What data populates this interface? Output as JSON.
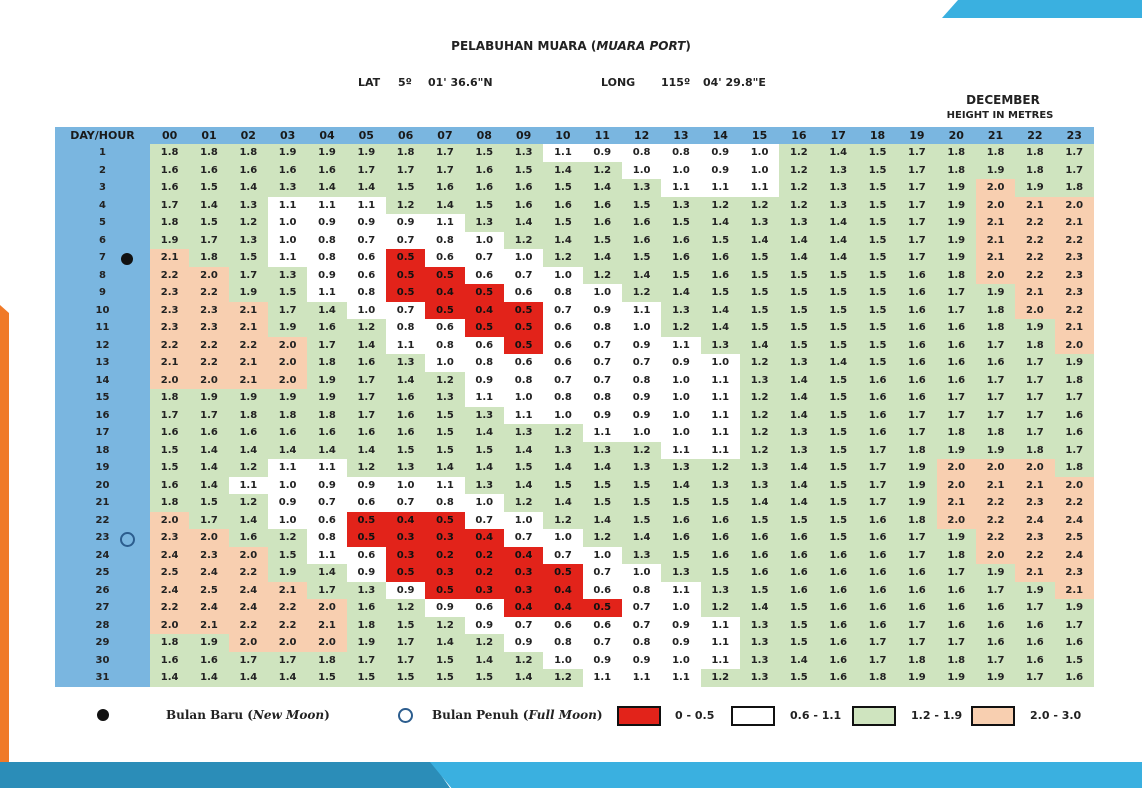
{
  "header": {
    "title_main": "PELABUHAN MUARA (",
    "title_italic": "MUARA PORT",
    "title_end": ")",
    "lat_label": "LAT",
    "lat_deg": "5º",
    "lat_min": "01' 36.6\"N",
    "long_label": "LONG",
    "long_deg": "115º",
    "long_min": "04' 29.8\"E",
    "month": "DECEMBER",
    "units": "HEIGHT IN METRES"
  },
  "table": {
    "corner_label": "DAY/HOUR",
    "hours": [
      "00",
      "01",
      "02",
      "03",
      "04",
      "05",
      "06",
      "07",
      "08",
      "09",
      "10",
      "11",
      "12",
      "13",
      "14",
      "15",
      "16",
      "17",
      "18",
      "19",
      "20",
      "21",
      "22",
      "23"
    ],
    "rows": [
      [
        "1.8",
        "1.8",
        "1.8",
        "1.9",
        "1.9",
        "1.9",
        "1.8",
        "1.7",
        "1.5",
        "1.3",
        "1.1",
        "0.9",
        "0.8",
        "0.8",
        "0.9",
        "1.0",
        "1.2",
        "1.4",
        "1.5",
        "1.7",
        "1.8",
        "1.8",
        "1.8",
        "1.7"
      ],
      [
        "1.6",
        "1.6",
        "1.6",
        "1.6",
        "1.6",
        "1.7",
        "1.7",
        "1.7",
        "1.6",
        "1.5",
        "1.4",
        "1.2",
        "1.0",
        "1.0",
        "0.9",
        "1.0",
        "1.2",
        "1.3",
        "1.5",
        "1.7",
        "1.8",
        "1.9",
        "1.8",
        "1.7"
      ],
      [
        "1.6",
        "1.5",
        "1.4",
        "1.3",
        "1.4",
        "1.4",
        "1.5",
        "1.6",
        "1.6",
        "1.6",
        "1.5",
        "1.4",
        "1.3",
        "1.1",
        "1.1",
        "1.1",
        "1.2",
        "1.3",
        "1.5",
        "1.7",
        "1.9",
        "2.0",
        "1.9",
        "1.8"
      ],
      [
        "1.7",
        "1.4",
        "1.3",
        "1.1",
        "1.1",
        "1.1",
        "1.2",
        "1.4",
        "1.5",
        "1.6",
        "1.6",
        "1.6",
        "1.5",
        "1.3",
        "1.2",
        "1.2",
        "1.2",
        "1.3",
        "1.5",
        "1.7",
        "1.9",
        "2.0",
        "2.1",
        "2.0"
      ],
      [
        "1.8",
        "1.5",
        "1.2",
        "1.0",
        "0.9",
        "0.9",
        "0.9",
        "1.1",
        "1.3",
        "1.4",
        "1.5",
        "1.6",
        "1.6",
        "1.5",
        "1.4",
        "1.3",
        "1.3",
        "1.4",
        "1.5",
        "1.7",
        "1.9",
        "2.1",
        "2.2",
        "2.1"
      ],
      [
        "1.9",
        "1.7",
        "1.3",
        "1.0",
        "0.8",
        "0.7",
        "0.7",
        "0.8",
        "1.0",
        "1.2",
        "1.4",
        "1.5",
        "1.6",
        "1.6",
        "1.5",
        "1.4",
        "1.4",
        "1.4",
        "1.5",
        "1.7",
        "1.9",
        "2.1",
        "2.2",
        "2.2"
      ],
      [
        "2.1",
        "1.8",
        "1.5",
        "1.1",
        "0.8",
        "0.6",
        "0.5",
        "0.6",
        "0.7",
        "1.0",
        "1.2",
        "1.4",
        "1.5",
        "1.6",
        "1.6",
        "1.5",
        "1.4",
        "1.4",
        "1.5",
        "1.7",
        "1.9",
        "2.1",
        "2.2",
        "2.3"
      ],
      [
        "2.2",
        "2.0",
        "1.7",
        "1.3",
        "0.9",
        "0.6",
        "0.5",
        "0.5",
        "0.6",
        "0.7",
        "1.0",
        "1.2",
        "1.4",
        "1.5",
        "1.6",
        "1.5",
        "1.5",
        "1.5",
        "1.5",
        "1.6",
        "1.8",
        "2.0",
        "2.2",
        "2.3"
      ],
      [
        "2.3",
        "2.2",
        "1.9",
        "1.5",
        "1.1",
        "0.8",
        "0.5",
        "0.4",
        "0.5",
        "0.6",
        "0.8",
        "1.0",
        "1.2",
        "1.4",
        "1.5",
        "1.5",
        "1.5",
        "1.5",
        "1.5",
        "1.6",
        "1.7",
        "1.9",
        "2.1",
        "2.3"
      ],
      [
        "2.3",
        "2.3",
        "2.1",
        "1.7",
        "1.4",
        "1.0",
        "0.7",
        "0.5",
        "0.4",
        "0.5",
        "0.7",
        "0.9",
        "1.1",
        "1.3",
        "1.4",
        "1.5",
        "1.5",
        "1.5",
        "1.5",
        "1.6",
        "1.7",
        "1.8",
        "2.0",
        "2.2"
      ],
      [
        "2.3",
        "2.3",
        "2.1",
        "1.9",
        "1.6",
        "1.2",
        "0.8",
        "0.6",
        "0.5",
        "0.5",
        "0.6",
        "0.8",
        "1.0",
        "1.2",
        "1.4",
        "1.5",
        "1.5",
        "1.5",
        "1.5",
        "1.6",
        "1.6",
        "1.8",
        "1.9",
        "2.1"
      ],
      [
        "2.2",
        "2.2",
        "2.2",
        "2.0",
        "1.7",
        "1.4",
        "1.1",
        "0.8",
        "0.6",
        "0.5",
        "0.6",
        "0.7",
        "0.9",
        "1.1",
        "1.3",
        "1.4",
        "1.5",
        "1.5",
        "1.5",
        "1.6",
        "1.6",
        "1.7",
        "1.8",
        "2.0"
      ],
      [
        "2.1",
        "2.2",
        "2.1",
        "2.0",
        "1.8",
        "1.6",
        "1.3",
        "1.0",
        "0.8",
        "0.6",
        "0.6",
        "0.7",
        "0.7",
        "0.9",
        "1.0",
        "1.2",
        "1.3",
        "1.4",
        "1.5",
        "1.6",
        "1.6",
        "1.6",
        "1.7",
        "1.9"
      ],
      [
        "2.0",
        "2.0",
        "2.1",
        "2.0",
        "1.9",
        "1.7",
        "1.4",
        "1.2",
        "0.9",
        "0.8",
        "0.7",
        "0.7",
        "0.8",
        "1.0",
        "1.1",
        "1.3",
        "1.4",
        "1.5",
        "1.6",
        "1.6",
        "1.6",
        "1.7",
        "1.7",
        "1.8"
      ],
      [
        "1.8",
        "1.9",
        "1.9",
        "1.9",
        "1.9",
        "1.7",
        "1.6",
        "1.3",
        "1.1",
        "1.0",
        "0.8",
        "0.8",
        "0.9",
        "1.0",
        "1.1",
        "1.2",
        "1.4",
        "1.5",
        "1.6",
        "1.6",
        "1.7",
        "1.7",
        "1.7",
        "1.7"
      ],
      [
        "1.7",
        "1.7",
        "1.8",
        "1.8",
        "1.8",
        "1.7",
        "1.6",
        "1.5",
        "1.3",
        "1.1",
        "1.0",
        "0.9",
        "0.9",
        "1.0",
        "1.1",
        "1.2",
        "1.4",
        "1.5",
        "1.6",
        "1.7",
        "1.7",
        "1.7",
        "1.7",
        "1.6"
      ],
      [
        "1.6",
        "1.6",
        "1.6",
        "1.6",
        "1.6",
        "1.6",
        "1.6",
        "1.5",
        "1.4",
        "1.3",
        "1.2",
        "1.1",
        "1.0",
        "1.0",
        "1.1",
        "1.2",
        "1.3",
        "1.5",
        "1.6",
        "1.7",
        "1.8",
        "1.8",
        "1.7",
        "1.6"
      ],
      [
        "1.5",
        "1.4",
        "1.4",
        "1.4",
        "1.4",
        "1.4",
        "1.5",
        "1.5",
        "1.5",
        "1.4",
        "1.3",
        "1.3",
        "1.2",
        "1.1",
        "1.1",
        "1.2",
        "1.3",
        "1.5",
        "1.7",
        "1.8",
        "1.9",
        "1.9",
        "1.8",
        "1.7"
      ],
      [
        "1.5",
        "1.4",
        "1.2",
        "1.1",
        "1.1",
        "1.2",
        "1.3",
        "1.4",
        "1.4",
        "1.5",
        "1.4",
        "1.4",
        "1.3",
        "1.3",
        "1.2",
        "1.3",
        "1.4",
        "1.5",
        "1.7",
        "1.9",
        "2.0",
        "2.0",
        "2.0",
        "1.8"
      ],
      [
        "1.6",
        "1.4",
        "1.1",
        "1.0",
        "0.9",
        "0.9",
        "1.0",
        "1.1",
        "1.3",
        "1.4",
        "1.5",
        "1.5",
        "1.5",
        "1.4",
        "1.3",
        "1.3",
        "1.4",
        "1.5",
        "1.7",
        "1.9",
        "2.0",
        "2.1",
        "2.1",
        "2.0"
      ],
      [
        "1.8",
        "1.5",
        "1.2",
        "0.9",
        "0.7",
        "0.6",
        "0.7",
        "0.8",
        "1.0",
        "1.2",
        "1.4",
        "1.5",
        "1.5",
        "1.5",
        "1.5",
        "1.4",
        "1.4",
        "1.5",
        "1.7",
        "1.9",
        "2.1",
        "2.2",
        "2.3",
        "2.2"
      ],
      [
        "2.0",
        "1.7",
        "1.4",
        "1.0",
        "0.6",
        "0.5",
        "0.4",
        "0.5",
        "0.7",
        "1.0",
        "1.2",
        "1.4",
        "1.5",
        "1.6",
        "1.6",
        "1.5",
        "1.5",
        "1.5",
        "1.6",
        "1.8",
        "2.0",
        "2.2",
        "2.4",
        "2.4"
      ],
      [
        "2.3",
        "2.0",
        "1.6",
        "1.2",
        "0.8",
        "0.5",
        "0.3",
        "0.3",
        "0.4",
        "0.7",
        "1.0",
        "1.2",
        "1.4",
        "1.6",
        "1.6",
        "1.6",
        "1.6",
        "1.5",
        "1.6",
        "1.7",
        "1.9",
        "2.2",
        "2.3",
        "2.5"
      ],
      [
        "2.4",
        "2.3",
        "2.0",
        "1.5",
        "1.1",
        "0.6",
        "0.3",
        "0.2",
        "0.2",
        "0.4",
        "0.7",
        "1.0",
        "1.3",
        "1.5",
        "1.6",
        "1.6",
        "1.6",
        "1.6",
        "1.6",
        "1.7",
        "1.8",
        "2.0",
        "2.2",
        "2.4"
      ],
      [
        "2.5",
        "2.4",
        "2.2",
        "1.9",
        "1.4",
        "0.9",
        "0.5",
        "0.3",
        "0.2",
        "0.3",
        "0.5",
        "0.7",
        "1.0",
        "1.3",
        "1.5",
        "1.6",
        "1.6",
        "1.6",
        "1.6",
        "1.6",
        "1.7",
        "1.9",
        "2.1",
        "2.3"
      ],
      [
        "2.4",
        "2.5",
        "2.4",
        "2.1",
        "1.7",
        "1.3",
        "0.9",
        "0.5",
        "0.3",
        "0.3",
        "0.4",
        "0.6",
        "0.8",
        "1.1",
        "1.3",
        "1.5",
        "1.6",
        "1.6",
        "1.6",
        "1.6",
        "1.6",
        "1.7",
        "1.9",
        "2.1"
      ],
      [
        "2.2",
        "2.4",
        "2.4",
        "2.2",
        "2.0",
        "1.6",
        "1.2",
        "0.9",
        "0.6",
        "0.4",
        "0.4",
        "0.5",
        "0.7",
        "1.0",
        "1.2",
        "1.4",
        "1.5",
        "1.6",
        "1.6",
        "1.6",
        "1.6",
        "1.6",
        "1.7",
        "1.9"
      ],
      [
        "2.0",
        "2.1",
        "2.2",
        "2.2",
        "2.1",
        "1.8",
        "1.5",
        "1.2",
        "0.9",
        "0.7",
        "0.6",
        "0.6",
        "0.7",
        "0.9",
        "1.1",
        "1.3",
        "1.5",
        "1.6",
        "1.6",
        "1.7",
        "1.6",
        "1.6",
        "1.6",
        "1.7"
      ],
      [
        "1.8",
        "1.9",
        "2.0",
        "2.0",
        "2.0",
        "1.9",
        "1.7",
        "1.4",
        "1.2",
        "0.9",
        "0.8",
        "0.7",
        "0.8",
        "0.9",
        "1.1",
        "1.3",
        "1.5",
        "1.6",
        "1.7",
        "1.7",
        "1.7",
        "1.6",
        "1.6",
        "1.6"
      ],
      [
        "1.6",
        "1.6",
        "1.7",
        "1.7",
        "1.8",
        "1.7",
        "1.7",
        "1.5",
        "1.4",
        "1.2",
        "1.0",
        "0.9",
        "0.9",
        "1.0",
        "1.1",
        "1.3",
        "1.4",
        "1.6",
        "1.7",
        "1.8",
        "1.8",
        "1.7",
        "1.6",
        "1.5"
      ],
      [
        "1.4",
        "1.4",
        "1.4",
        "1.4",
        "1.5",
        "1.5",
        "1.5",
        "1.5",
        "1.5",
        "1.4",
        "1.2",
        "1.1",
        "1.1",
        "1.1",
        "1.2",
        "1.3",
        "1.5",
        "1.6",
        "1.8",
        "1.9",
        "1.9",
        "1.9",
        "1.7",
        "1.6"
      ]
    ],
    "new_moon_day": 7,
    "full_moon_day": 23
  },
  "legend": {
    "new_moon_label": "Bulan Baru (",
    "new_moon_italic": "New Moon",
    "new_moon_end": ")",
    "full_moon_label": "Bulan Penuh (",
    "full_moon_italic": "Full Moon",
    "full_moon_end": ")",
    "ranges": [
      {
        "label": "0 - 0.5",
        "color": "#e2231a"
      },
      {
        "label": "0.6 - 1.1",
        "color": "#ffffff"
      },
      {
        "label": "1.2 - 1.9",
        "color": "#cfe4bf"
      },
      {
        "label": "2.0 - 3.0",
        "color": "#f8cfb0"
      }
    ]
  },
  "colors": {
    "header_blue": "#7ab6e0",
    "accent_orange": "#f07a28",
    "accent_blue": "#3ab0e0"
  }
}
